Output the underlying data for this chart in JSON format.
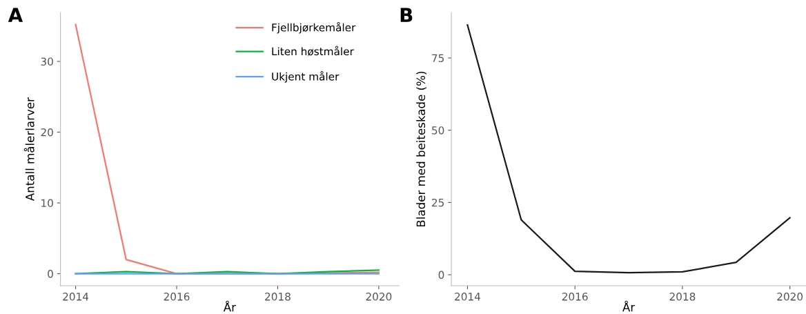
{
  "chart_data": [
    {
      "type": "line",
      "title": "A",
      "xlabel": "År",
      "ylabel": "Antall målerlarver",
      "x": [
        2014,
        2015,
        2016,
        2017,
        2018,
        2019,
        2020
      ],
      "xlim": [
        2013.7,
        2020.4
      ],
      "xticks": [
        2014,
        2016,
        2018,
        2020
      ],
      "ylim": [
        -1.7,
        36.9
      ],
      "yticks": [
        0,
        10,
        20,
        30
      ],
      "grid": false,
      "legend": "top right",
      "series": [
        {
          "name": "Fjellbjørkemåler",
          "color": "#f8766d",
          "values": [
            35.2,
            2,
            0,
            0,
            0,
            0.1,
            0.2
          ]
        },
        {
          "name": "Liten høstmåler",
          "color": "#00ba38",
          "values": [
            0,
            0.3,
            0,
            0.3,
            0,
            0.3,
            0.5
          ]
        },
        {
          "name": "Ukjent måler",
          "color": "#619cff",
          "values": [
            0,
            0,
            0,
            0,
            0,
            0,
            0
          ]
        }
      ]
    },
    {
      "type": "line",
      "title": "B",
      "xlabel": "År",
      "ylabel": "Blader med beiteskade (%)",
      "x": [
        2014,
        2015,
        2016,
        2017,
        2018,
        2019,
        2020
      ],
      "xlim": [
        2013.7,
        2020.3
      ],
      "xticks": [
        2014,
        2016,
        2018,
        2020
      ],
      "ylim": [
        -3.8,
        90.7
      ],
      "yticks": [
        0,
        25,
        50,
        75
      ],
      "grid": false,
      "series": [
        {
          "color": "#1a1a1a",
          "values": [
            86.4,
            19,
            1.2,
            0.7,
            1,
            4.3,
            19.7
          ]
        }
      ]
    }
  ]
}
